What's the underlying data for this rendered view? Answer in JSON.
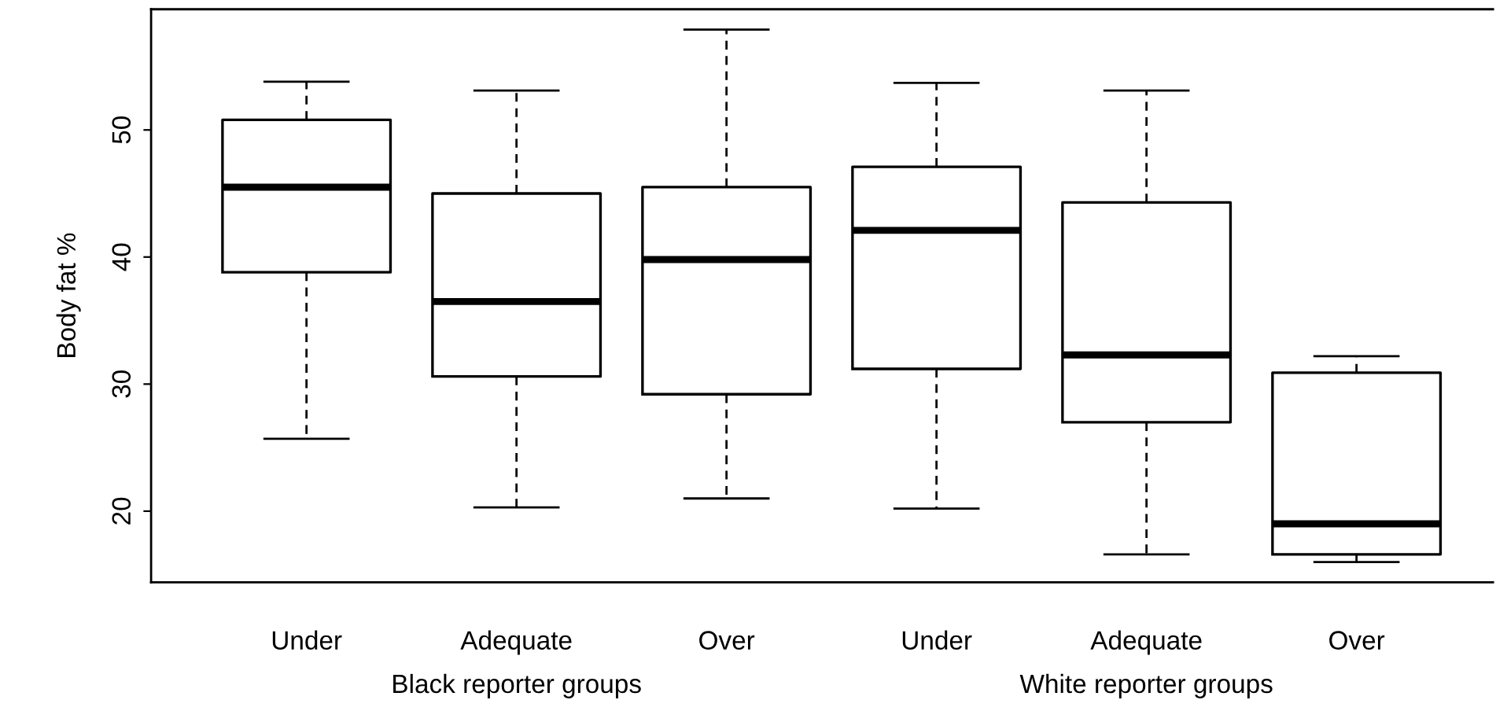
{
  "chart_data": {
    "type": "box",
    "ylabel": "Body fat %",
    "categories": [
      "Under",
      "Adequate",
      "Over",
      "Under",
      "Adequate",
      "Over"
    ],
    "boxes": [
      {
        "low": 25.7,
        "q1": 38.8,
        "median": 45.5,
        "q3": 50.8,
        "high": 53.8
      },
      {
        "low": 20.3,
        "q1": 30.6,
        "median": 36.5,
        "q3": 45.0,
        "high": 53.1
      },
      {
        "low": 21.0,
        "q1": 29.2,
        "median": 39.8,
        "q3": 45.5,
        "high": 57.9
      },
      {
        "low": 20.2,
        "q1": 31.2,
        "median": 42.1,
        "q3": 47.1,
        "high": 53.7
      },
      {
        "low": 16.6,
        "q1": 27.0,
        "median": 32.3,
        "q3": 44.3,
        "high": 53.1
      },
      {
        "low": 16.0,
        "q1": 16.6,
        "median": 19.0,
        "q3": 30.9,
        "high": 32.2
      }
    ],
    "ylim": [
      14.4,
      59.5
    ],
    "yticks": [
      20,
      30,
      40,
      50
    ],
    "grid": false,
    "annotations": [
      "Black reporter groups",
      "White reporter groups"
    ]
  }
}
